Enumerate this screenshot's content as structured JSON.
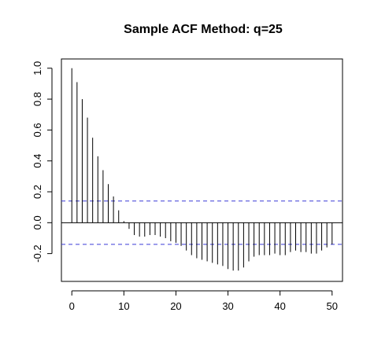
{
  "chart_data": {
    "type": "bar",
    "title": "Sample ACF Method: q=25",
    "xlabel": "",
    "ylabel": "",
    "xlim": [
      -2,
      52
    ],
    "ylim": [
      -0.38,
      1.06
    ],
    "x_ticks": [
      0,
      10,
      20,
      30,
      40,
      50
    ],
    "x_tick_labels": [
      "0",
      "10",
      "20",
      "30",
      "40",
      "50"
    ],
    "y_ticks": [
      -0.2,
      0.0,
      0.2,
      0.4,
      0.6,
      0.8,
      1.0
    ],
    "y_tick_labels": [
      "-0.2",
      "0.0",
      "0.2",
      "0.4",
      "0.6",
      "0.8",
      "1.0"
    ],
    "confidence_band": {
      "upper": 0.14,
      "lower": -0.14,
      "color": "#3b3bd6",
      "style": "dashed"
    },
    "lags": [
      0,
      1,
      2,
      3,
      4,
      5,
      6,
      7,
      8,
      9,
      10,
      11,
      12,
      13,
      14,
      15,
      16,
      17,
      18,
      19,
      20,
      21,
      22,
      23,
      24,
      25,
      26,
      27,
      28,
      29,
      30,
      31,
      32,
      33,
      34,
      35,
      36,
      37,
      38,
      39,
      40,
      41,
      42,
      43,
      44,
      45,
      46,
      47,
      48,
      49,
      50
    ],
    "values": [
      1.0,
      0.91,
      0.8,
      0.68,
      0.55,
      0.43,
      0.34,
      0.25,
      0.17,
      0.08,
      0.01,
      -0.04,
      -0.08,
      -0.09,
      -0.09,
      -0.08,
      -0.08,
      -0.09,
      -0.1,
      -0.12,
      -0.13,
      -0.15,
      -0.18,
      -0.21,
      -0.23,
      -0.24,
      -0.25,
      -0.26,
      -0.27,
      -0.28,
      -0.3,
      -0.31,
      -0.31,
      -0.29,
      -0.25,
      -0.22,
      -0.21,
      -0.21,
      -0.21,
      -0.2,
      -0.21,
      -0.21,
      -0.19,
      -0.18,
      -0.19,
      -0.19,
      -0.2,
      -0.2,
      -0.18,
      -0.16,
      -0.14
    ]
  }
}
